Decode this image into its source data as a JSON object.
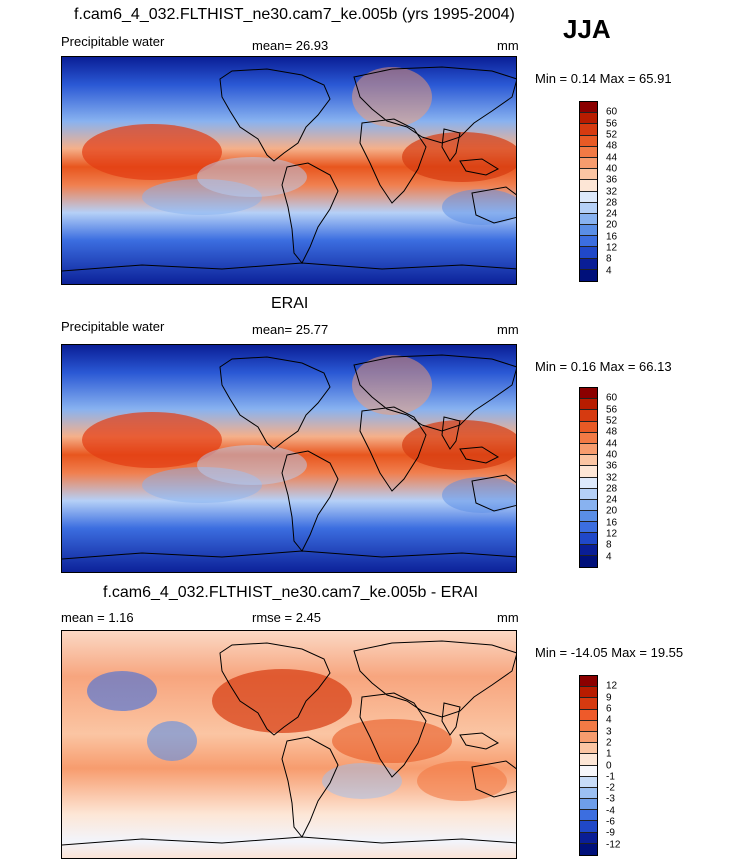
{
  "season": "JJA",
  "panels": [
    {
      "title": "f.cam6_4_032.FLTHIST_ne30.cam7_ke.005b (yrs 1995-2004)",
      "left_label": "Precipitable water",
      "center_label": "mean=  26.93",
      "right_label": "mm",
      "minmax": "Min =   0.14 Max =  65.91",
      "colorbar": {
        "levels": [
          "60",
          "56",
          "52",
          "48",
          "44",
          "40",
          "36",
          "32",
          "28",
          "24",
          "20",
          "16",
          "12",
          "8",
          "4"
        ],
        "colors": [
          "#8b0000",
          "#b81c00",
          "#d63a10",
          "#e85a25",
          "#f27a45",
          "#f79c6e",
          "#fbc5a3",
          "#fde6d6",
          "#dde9fb",
          "#b5d0f7",
          "#88b2f0",
          "#5a8ee6",
          "#3c6ee0",
          "#2048c8",
          "#0a1e96",
          "#00107a"
        ]
      },
      "map_style": "pw"
    },
    {
      "title": "ERAI",
      "left_label": "Precipitable water",
      "center_label": "mean=  25.77",
      "right_label": "mm",
      "minmax": "Min =   0.16 Max =  66.13",
      "colorbar": {
        "levels": [
          "60",
          "56",
          "52",
          "48",
          "44",
          "40",
          "36",
          "32",
          "28",
          "24",
          "20",
          "16",
          "12",
          "8",
          "4"
        ],
        "colors": [
          "#8b0000",
          "#b81c00",
          "#d63a10",
          "#e85a25",
          "#f27a45",
          "#f79c6e",
          "#fbc5a3",
          "#fde6d6",
          "#dde9fb",
          "#b5d0f7",
          "#88b2f0",
          "#5a8ee6",
          "#3c6ee0",
          "#2048c8",
          "#0a1e96",
          "#00107a"
        ]
      },
      "map_style": "pw"
    },
    {
      "title": "f.cam6_4_032.FLTHIST_ne30.cam7_ke.005b - ERAI",
      "left_label": "mean =   1.16",
      "center_label": "rmse =   2.45",
      "right_label": "mm",
      "minmax": "Min = -14.05 Max =  19.55",
      "colorbar": {
        "levels": [
          "12",
          "9",
          "6",
          "4",
          "3",
          "2",
          "1",
          "0",
          "-1",
          "-2",
          "-3",
          "-4",
          "-6",
          "-9",
          "-12"
        ],
        "colors": [
          "#8b0000",
          "#b81c00",
          "#d63a10",
          "#ee5a2a",
          "#f27a45",
          "#f79c6e",
          "#fbc5a3",
          "#fde6d6",
          "#f7f7fb",
          "#c8dcf8",
          "#9cc0f2",
          "#6e9eea",
          "#3c6ee0",
          "#2048c8",
          "#0a1e96",
          "#00107a"
        ]
      },
      "map_style": "diff"
    }
  ]
}
